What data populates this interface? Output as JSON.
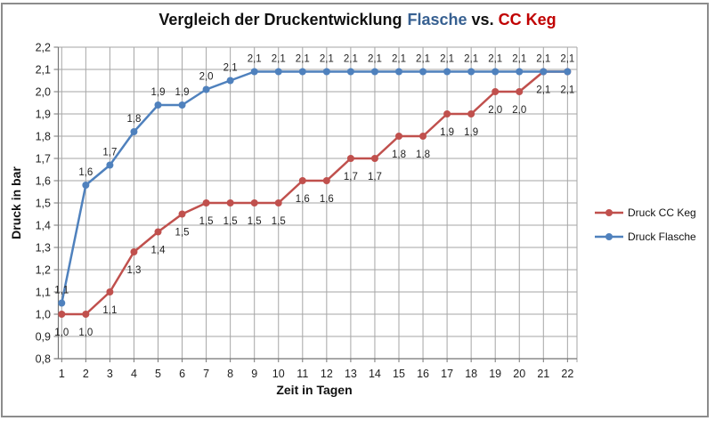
{
  "window": {
    "background": "#FFFFFF",
    "border_color": "#8C8C8C"
  },
  "title": {
    "main": "Vergleich der Druckentwicklung",
    "series_blue": "Flasche",
    "vs": "vs.",
    "series_red": "CC Keg",
    "blue_color": "#376091",
    "red_color": "#C00000"
  },
  "chart_data": {
    "type": "line",
    "title": "Vergleich der Druckentwicklung Flasche vs. CC Keg",
    "xlabel": "Zeit in Tagen",
    "ylabel": "Druck in bar",
    "x": [
      1,
      2,
      3,
      4,
      5,
      6,
      7,
      8,
      9,
      10,
      11,
      12,
      13,
      14,
      15,
      16,
      17,
      18,
      19,
      20,
      21,
      22
    ],
    "xtick_labels": [
      "1",
      "2",
      "3",
      "4",
      "5",
      "6",
      "7",
      "8",
      "9",
      "10",
      "11",
      "12",
      "13",
      "14",
      "15",
      "16",
      "17",
      "18",
      "19",
      "20",
      "21",
      "22"
    ],
    "ylim": [
      0.8,
      2.2
    ],
    "ytick_values": [
      0.8,
      0.9,
      1.0,
      1.1,
      1.2,
      1.3,
      1.4,
      1.5,
      1.6,
      1.7,
      1.8,
      1.9,
      2.0,
      2.1,
      2.2
    ],
    "ytick_labels": [
      "0,8",
      "0,9",
      "1,0",
      "1,1",
      "1,2",
      "1,3",
      "1,4",
      "1,5",
      "1,6",
      "1,7",
      "1,8",
      "1,9",
      "2,0",
      "2,1",
      "2,2"
    ],
    "decimal_separator": ",",
    "grid": true,
    "legend_position": "right",
    "grid_color": "#A6A6A6",
    "axis_color": "#757575",
    "label_color": "#1F1F1F",
    "series": [
      {
        "name": "Druck CC Keg",
        "color": "#C0504D",
        "values": [
          1.0,
          1.0,
          1.1,
          1.28,
          1.37,
          1.45,
          1.5,
          1.5,
          1.5,
          1.5,
          1.6,
          1.6,
          1.7,
          1.7,
          1.8,
          1.8,
          1.9,
          1.9,
          2.0,
          2.0,
          2.09,
          2.09
        ],
        "labels": [
          "1,0",
          "1,0",
          "1,1",
          "1,3",
          "1,4",
          "1,5",
          "1,5",
          "1,5",
          "1,5",
          "1,5",
          "1,6",
          "1,6",
          "1,7",
          "1,7",
          "1,8",
          "1,8",
          "1,9",
          "1,9",
          "2,0",
          "2,0",
          "2,1",
          "2,1"
        ],
        "label_position": "below"
      },
      {
        "name": "Druck Flasche",
        "color": "#4F81BD",
        "values": [
          1.05,
          1.58,
          1.67,
          1.82,
          1.94,
          1.94,
          2.01,
          2.05,
          2.09,
          2.09,
          2.09,
          2.09,
          2.09,
          2.09,
          2.09,
          2.09,
          2.09,
          2.09,
          2.09,
          2.09,
          2.09,
          2.09
        ],
        "labels": [
          "1,1",
          "1,6",
          "1,7",
          "1,8",
          "1,9",
          "1,9",
          "2,0",
          "2,1",
          "2,1",
          "2,1",
          "2,1",
          "2,1",
          "2,1",
          "2,1",
          "2,1",
          "2,1",
          "2,1",
          "2,1",
          "2,1",
          "2,1",
          "2,1",
          "2,1"
        ],
        "label_position": "above"
      }
    ]
  }
}
